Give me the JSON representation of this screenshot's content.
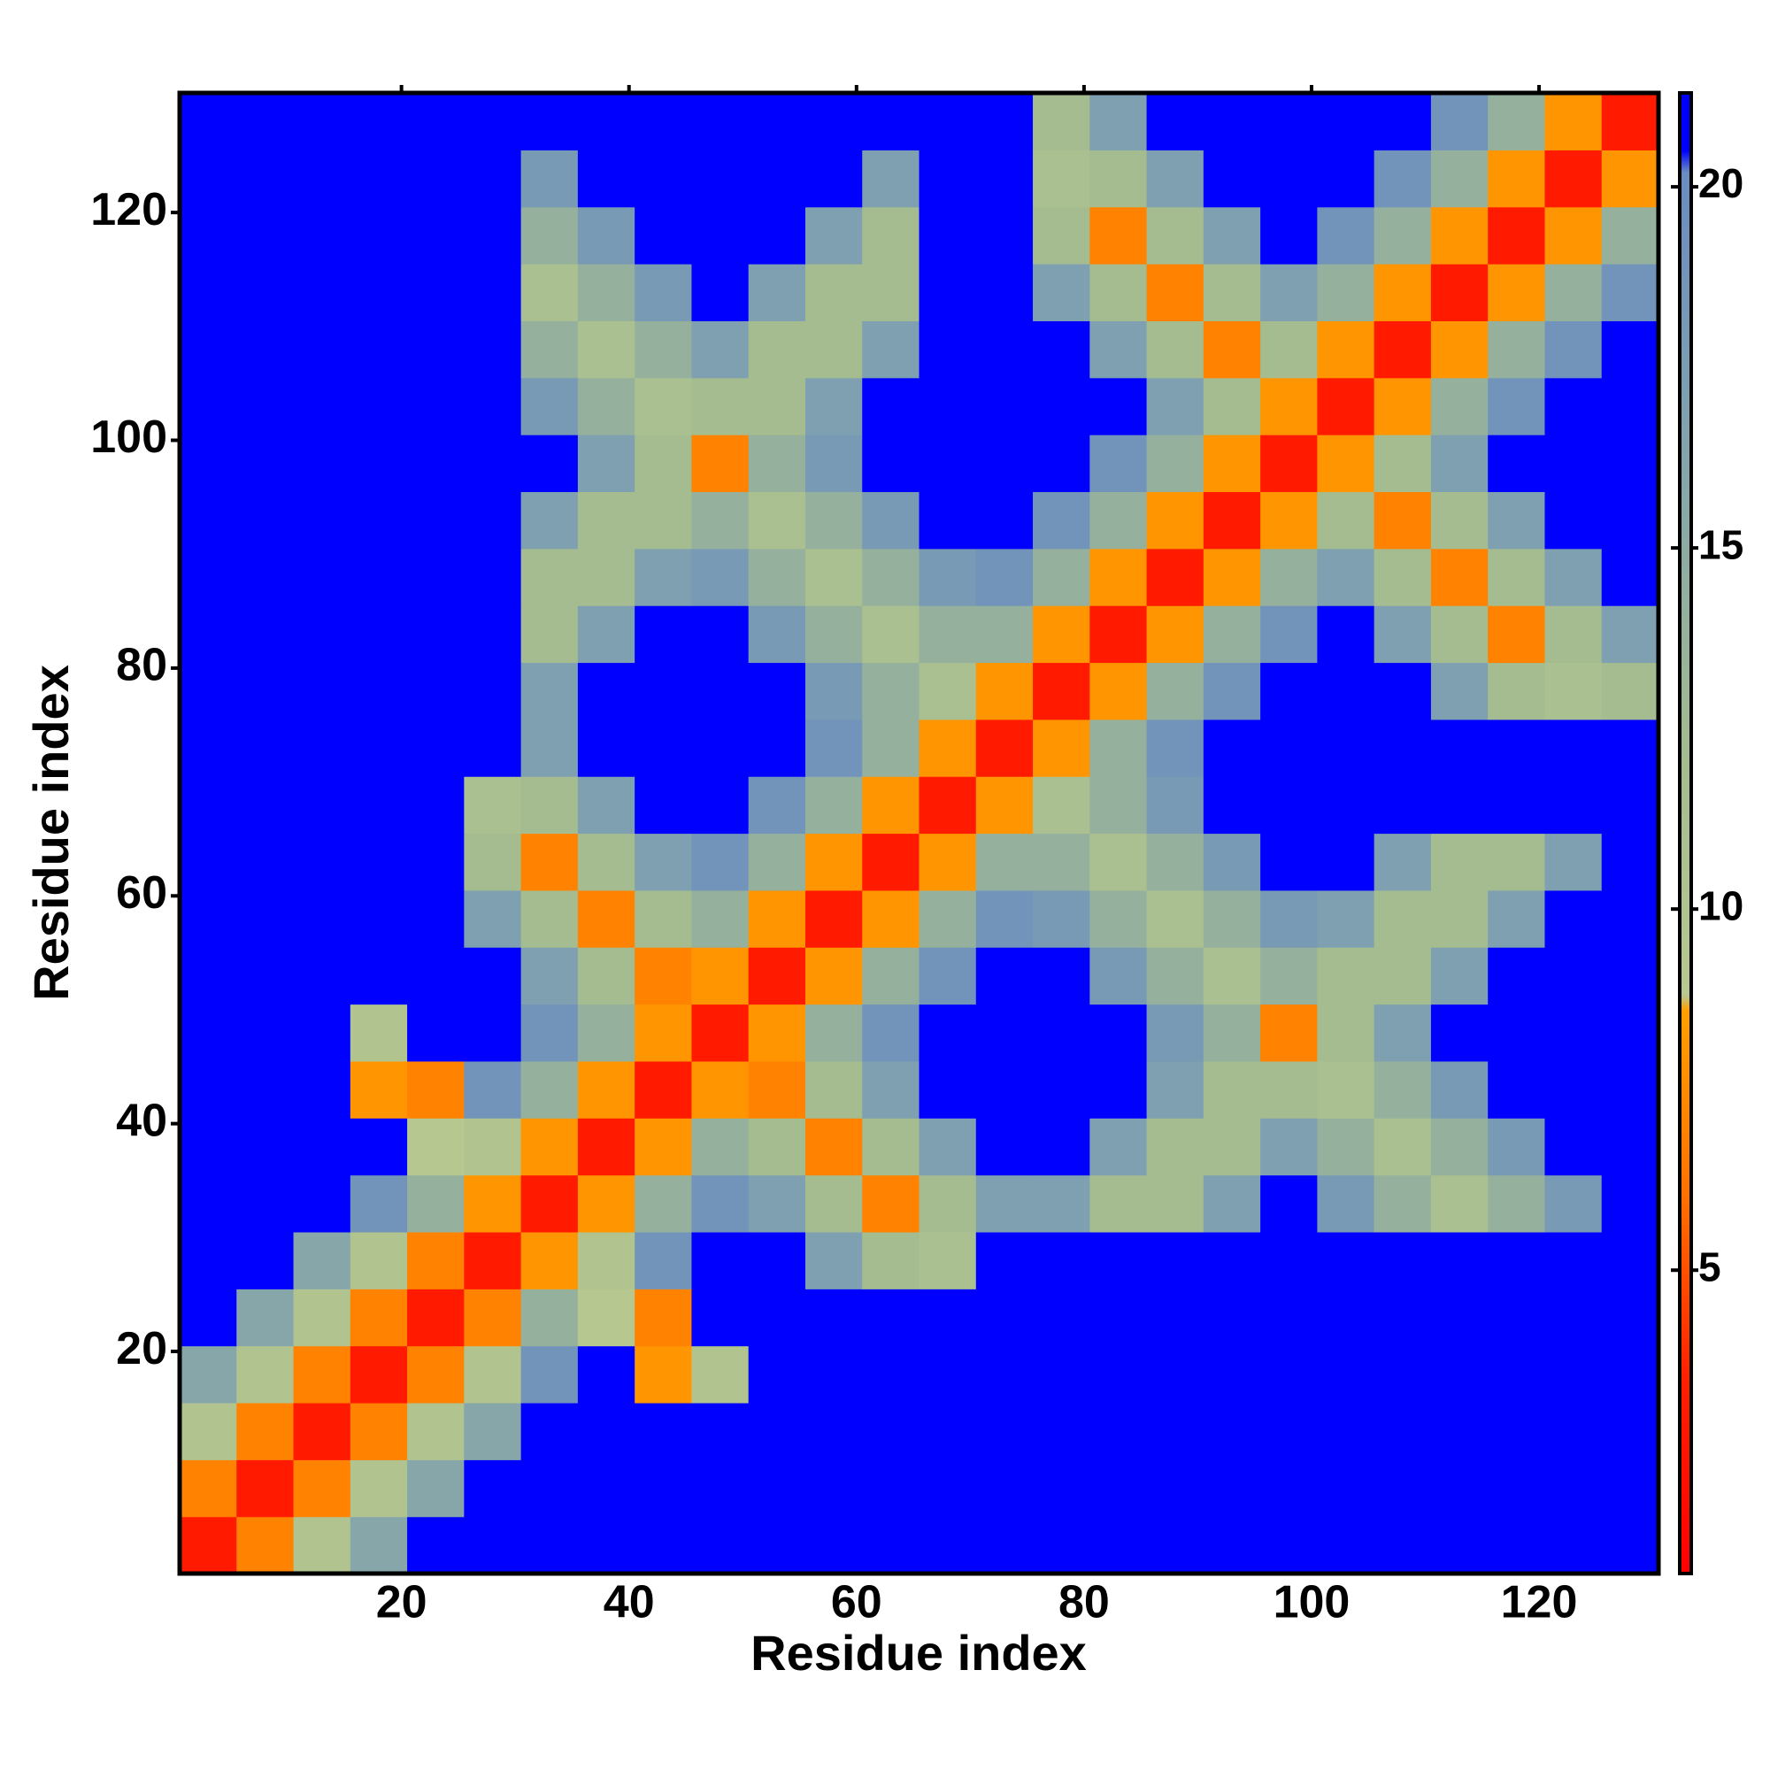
{
  "chart_data": {
    "type": "heatmap",
    "x_label": "Residue index",
    "y_label": "Residue index",
    "x_edges": [
      0.5,
      5.5,
      10.5,
      15.5,
      20.5,
      25.5,
      30.5,
      35.5,
      40.5,
      45.5,
      50.5,
      55.5,
      60.5,
      65.5,
      70.5,
      75.5,
      80.5,
      85.5,
      90.5,
      95.5,
      100.5,
      105.5,
      110.5,
      115.5,
      120.5,
      125.5,
      130.5
    ],
    "y_edges": [
      0.5,
      5.5,
      10.5,
      15.5,
      20.5,
      25.5,
      30.5,
      35.5,
      40.5,
      45.5,
      50.5,
      55.5,
      60.5,
      65.5,
      70.5,
      75.5,
      80.5,
      85.5,
      90.5,
      95.5,
      100.5,
      105.5,
      110.5,
      115.5,
      120.5,
      125.5,
      130.5
    ],
    "xlim": [
      0.5,
      130.5
    ],
    "ylim": [
      0.5,
      130.5
    ],
    "xticks": [
      20,
      40,
      60,
      80,
      100,
      120
    ],
    "yticks": [
      20,
      40,
      60,
      80,
      100,
      120
    ],
    "zlim": [
      0.8,
      21.3
    ],
    "zticks": [
      5,
      10,
      15,
      20
    ],
    "colorscale": [
      [
        0.8,
        "#ff0000"
      ],
      [
        3.5,
        "#ff2000"
      ],
      [
        6,
        "#ff7000"
      ],
      [
        8.6,
        "#ffa000"
      ],
      [
        8.8,
        "#b8c890"
      ],
      [
        12,
        "#a4bc90"
      ],
      [
        17,
        "#7fa0b0"
      ],
      [
        20.2,
        "#6a8cc0"
      ],
      [
        20.5,
        "#0000ff"
      ],
      [
        21.3,
        "#0000ff"
      ]
    ],
    "z": [
      [
        3,
        7,
        10,
        16,
        21,
        21,
        21,
        21,
        21,
        21,
        21,
        21,
        21,
        21,
        21,
        21,
        21,
        21,
        21,
        21,
        21,
        21,
        21,
        21,
        21,
        21
      ],
      [
        7,
        3,
        7,
        10,
        16,
        21,
        21,
        21,
        21,
        21,
        21,
        21,
        21,
        21,
        21,
        21,
        21,
        21,
        21,
        21,
        21,
        21,
        21,
        21,
        21,
        21
      ],
      [
        10,
        7,
        3,
        7,
        10,
        16,
        21,
        21,
        21,
        21,
        21,
        21,
        21,
        21,
        21,
        21,
        21,
        21,
        21,
        21,
        21,
        21,
        21,
        21,
        21,
        21
      ],
      [
        16,
        10,
        7,
        3,
        7,
        10,
        19,
        21,
        8,
        10,
        21,
        21,
        21,
        21,
        21,
        21,
        21,
        21,
        21,
        21,
        21,
        21,
        21,
        21,
        21,
        21
      ],
      [
        21,
        16,
        10,
        7,
        3,
        7,
        14,
        9,
        7,
        21,
        21,
        21,
        21,
        21,
        21,
        21,
        21,
        21,
        21,
        21,
        21,
        21,
        21,
        21,
        21,
        21
      ],
      [
        21,
        21,
        16,
        10,
        7,
        3,
        8,
        10,
        19,
        21,
        21,
        17,
        12,
        11,
        21,
        21,
        21,
        21,
        21,
        21,
        21,
        21,
        21,
        21,
        21,
        21
      ],
      [
        21,
        21,
        21,
        19,
        14,
        8,
        3,
        8,
        14,
        19,
        17,
        12,
        7,
        12,
        17,
        17,
        12,
        12,
        17,
        21,
        18,
        14,
        11,
        14,
        18,
        21
      ],
      [
        21,
        21,
        21,
        21,
        9,
        10,
        8,
        3,
        8,
        14,
        12,
        7,
        12,
        17,
        21,
        21,
        17,
        12,
        12,
        17,
        14,
        11,
        14,
        18,
        21,
        21
      ],
      [
        21,
        21,
        21,
        8,
        7,
        19,
        14,
        8,
        3,
        8,
        7,
        12,
        17,
        21,
        21,
        21,
        21,
        17,
        12,
        12,
        11,
        14,
        18,
        21,
        21,
        21
      ],
      [
        21,
        21,
        21,
        10,
        21,
        21,
        19,
        14,
        8,
        3,
        8,
        14,
        19,
        21,
        21,
        21,
        21,
        18,
        14,
        7,
        12,
        17,
        21,
        21,
        21,
        21
      ],
      [
        21,
        21,
        21,
        21,
        21,
        21,
        17,
        12,
        7,
        8,
        3,
        8,
        14,
        19,
        21,
        21,
        18,
        14,
        11,
        14,
        12,
        12,
        17,
        21,
        21,
        21
      ],
      [
        21,
        21,
        21,
        21,
        21,
        17,
        12,
        7,
        12,
        14,
        8,
        3,
        8,
        14,
        19,
        18,
        14,
        11,
        14,
        18,
        17,
        12,
        12,
        17,
        21,
        21
      ],
      [
        21,
        21,
        21,
        21,
        21,
        12,
        7,
        12,
        17,
        19,
        14,
        8,
        3,
        8,
        14,
        14,
        11,
        14,
        18,
        21,
        21,
        17,
        12,
        12,
        17,
        21
      ],
      [
        21,
        21,
        21,
        21,
        21,
        11,
        12,
        17,
        21,
        21,
        19,
        14,
        8,
        3,
        8,
        11,
        14,
        18,
        21,
        21,
        21,
        21,
        21,
        21,
        21,
        21
      ],
      [
        21,
        21,
        21,
        21,
        21,
        21,
        17,
        21,
        21,
        21,
        21,
        19,
        14,
        8,
        3,
        8,
        14,
        19,
        21,
        21,
        21,
        21,
        21,
        21,
        21,
        21
      ],
      [
        21,
        21,
        21,
        21,
        21,
        21,
        17,
        21,
        21,
        21,
        21,
        18,
        14,
        11,
        8,
        3,
        8,
        14,
        19,
        21,
        21,
        21,
        17,
        12,
        11,
        12
      ],
      [
        21,
        21,
        21,
        21,
        21,
        21,
        12,
        17,
        21,
        21,
        18,
        14,
        11,
        14,
        14,
        8,
        3,
        8,
        14,
        19,
        21,
        17,
        12,
        7,
        12,
        17
      ],
      [
        21,
        21,
        21,
        21,
        21,
        21,
        12,
        12,
        17,
        18,
        14,
        11,
        14,
        18,
        19,
        14,
        8,
        3,
        8,
        14,
        17,
        12,
        7,
        12,
        17,
        21
      ],
      [
        21,
        21,
        21,
        21,
        21,
        21,
        17,
        12,
        12,
        14,
        11,
        14,
        18,
        21,
        21,
        19,
        14,
        8,
        3,
        8,
        12,
        7,
        12,
        17,
        21,
        21
      ],
      [
        21,
        21,
        21,
        21,
        21,
        21,
        21,
        17,
        12,
        7,
        14,
        18,
        21,
        21,
        21,
        21,
        19,
        14,
        8,
        3,
        8,
        12,
        17,
        21,
        21,
        21
      ],
      [
        21,
        21,
        21,
        21,
        21,
        21,
        18,
        14,
        11,
        12,
        12,
        17,
        21,
        21,
        21,
        21,
        21,
        17,
        12,
        8,
        3,
        8,
        14,
        19,
        21,
        21
      ],
      [
        21,
        21,
        21,
        21,
        21,
        21,
        14,
        11,
        14,
        17,
        12,
        12,
        17,
        21,
        21,
        21,
        17,
        12,
        7,
        12,
        8,
        3,
        8,
        14,
        19,
        21
      ],
      [
        21,
        21,
        21,
        21,
        21,
        21,
        11,
        14,
        18,
        21,
        17,
        12,
        12,
        21,
        21,
        17,
        12,
        7,
        12,
        17,
        14,
        8,
        3,
        8,
        14,
        19
      ],
      [
        21,
        21,
        21,
        21,
        21,
        21,
        14,
        18,
        21,
        21,
        21,
        17,
        12,
        21,
        21,
        12,
        7,
        12,
        17,
        21,
        19,
        14,
        8,
        3,
        8,
        14
      ],
      [
        21,
        21,
        21,
        21,
        21,
        21,
        18,
        21,
        21,
        21,
        21,
        21,
        17,
        21,
        21,
        11,
        12,
        17,
        21,
        21,
        21,
        19,
        14,
        8,
        3,
        8
      ],
      [
        21,
        21,
        21,
        21,
        21,
        21,
        21,
        21,
        21,
        21,
        21,
        21,
        21,
        21,
        21,
        12,
        17,
        21,
        21,
        21,
        21,
        21,
        19,
        14,
        8,
        3
      ]
    ]
  }
}
